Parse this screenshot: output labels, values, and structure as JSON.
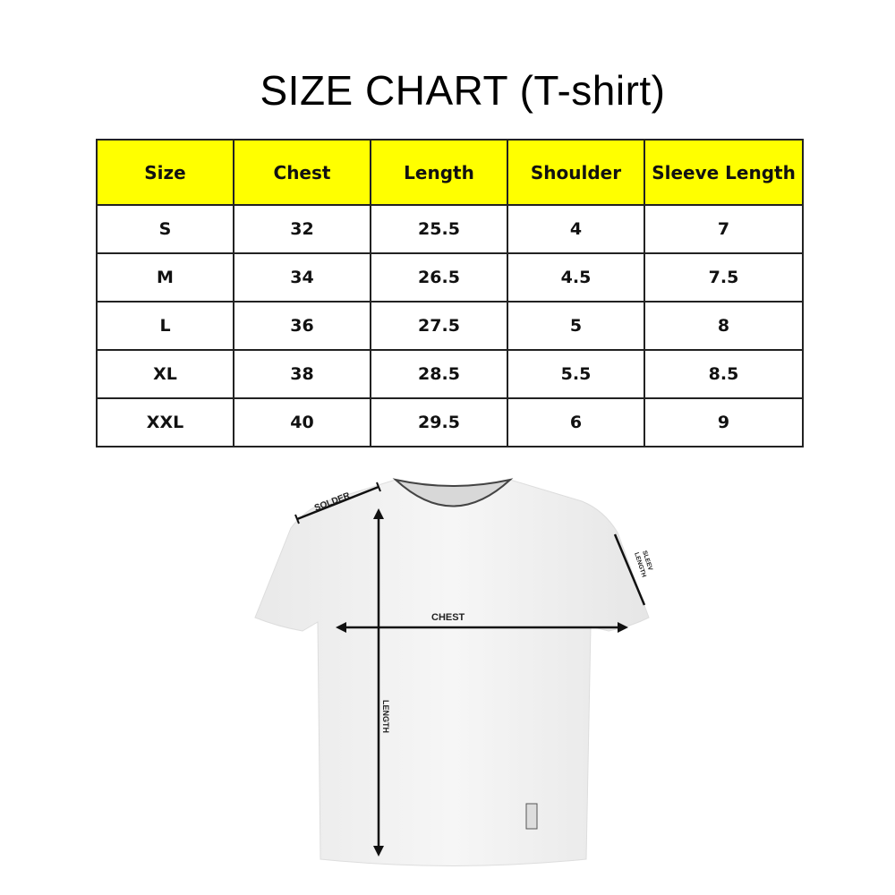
{
  "title": "SIZE CHART (T-shirt)",
  "table": {
    "header_color": "#ffff00",
    "columns": [
      "Size",
      "Chest",
      "Length",
      "Shoulder",
      "Sleeve Length"
    ],
    "rows": [
      [
        "S",
        "32",
        "25.5",
        "4",
        "7"
      ],
      [
        "M",
        "34",
        "26.5",
        "4.5",
        "7.5"
      ],
      [
        "L",
        "36",
        "27.5",
        "5",
        "8"
      ],
      [
        "XL",
        "38",
        "28.5",
        "5.5",
        "8.5"
      ],
      [
        "XXL",
        "40",
        "29.5",
        "6",
        "9"
      ]
    ]
  },
  "diagram": {
    "shoulder_label": "SOLDER",
    "chest_label": "CHEST",
    "length_label": "LENGTH",
    "sleeve_label_1": "SLEEV",
    "sleeve_label_2": "LENGTH"
  }
}
